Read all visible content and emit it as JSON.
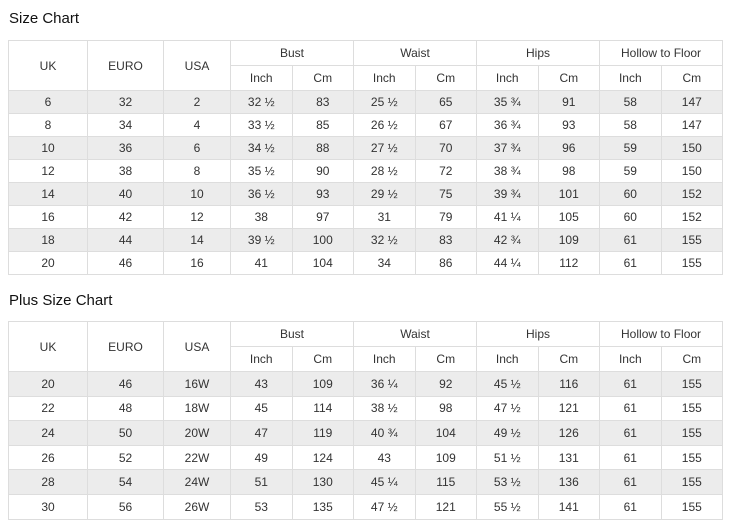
{
  "colors": {
    "border": "#dddddd",
    "zebra_row": "#ececec",
    "text": "#333333",
    "title_text": "#111111"
  },
  "chart_data": [
    {
      "type": "table",
      "title": "Size Chart",
      "column_groups": [
        {
          "label": "UK",
          "span": 1
        },
        {
          "label": "EURO",
          "span": 1
        },
        {
          "label": "USA",
          "span": 1
        },
        {
          "label": "Bust",
          "span": 2
        },
        {
          "label": "Waist",
          "span": 2
        },
        {
          "label": "Hips",
          "span": 2
        },
        {
          "label": "Hollow to Floor",
          "span": 2
        }
      ],
      "sub_headers": [
        "Inch",
        "Cm"
      ],
      "rows": [
        [
          "6",
          "32",
          "2",
          "32 ½",
          "83",
          "25 ½",
          "65",
          "35 ¾",
          "91",
          "58",
          "147"
        ],
        [
          "8",
          "34",
          "4",
          "33 ½",
          "85",
          "26 ½",
          "67",
          "36 ¾",
          "93",
          "58",
          "147"
        ],
        [
          "10",
          "36",
          "6",
          "34 ½",
          "88",
          "27 ½",
          "70",
          "37 ¾",
          "96",
          "59",
          "150"
        ],
        [
          "12",
          "38",
          "8",
          "35 ½",
          "90",
          "28 ½",
          "72",
          "38 ¾",
          "98",
          "59",
          "150"
        ],
        [
          "14",
          "40",
          "10",
          "36 ½",
          "93",
          "29 ½",
          "75",
          "39 ¾",
          "101",
          "60",
          "152"
        ],
        [
          "16",
          "42",
          "12",
          "38",
          "97",
          "31",
          "79",
          "41 ¼",
          "105",
          "60",
          "152"
        ],
        [
          "18",
          "44",
          "14",
          "39 ½",
          "100",
          "32 ½",
          "83",
          "42 ¾",
          "109",
          "61",
          "155"
        ],
        [
          "20",
          "46",
          "16",
          "41",
          "104",
          "34",
          "86",
          "44 ¼",
          "112",
          "61",
          "155"
        ]
      ]
    },
    {
      "type": "table",
      "title": "Plus Size Chart",
      "column_groups": [
        {
          "label": "UK",
          "span": 1
        },
        {
          "label": "EURO",
          "span": 1
        },
        {
          "label": "USA",
          "span": 1
        },
        {
          "label": "Bust",
          "span": 2
        },
        {
          "label": "Waist",
          "span": 2
        },
        {
          "label": "Hips",
          "span": 2
        },
        {
          "label": "Hollow to Floor",
          "span": 2
        }
      ],
      "sub_headers": [
        "Inch",
        "Cm"
      ],
      "rows": [
        [
          "20",
          "46",
          "16W",
          "43",
          "109",
          "36 ¼",
          "92",
          "45 ½",
          "116",
          "61",
          "155"
        ],
        [
          "22",
          "48",
          "18W",
          "45",
          "114",
          "38 ½",
          "98",
          "47 ½",
          "121",
          "61",
          "155"
        ],
        [
          "24",
          "50",
          "20W",
          "47",
          "119",
          "40 ¾",
          "104",
          "49 ½",
          "126",
          "61",
          "155"
        ],
        [
          "26",
          "52",
          "22W",
          "49",
          "124",
          "43",
          "109",
          "51 ½",
          "131",
          "61",
          "155"
        ],
        [
          "28",
          "54",
          "24W",
          "51",
          "130",
          "45 ¼",
          "115",
          "53 ½",
          "136",
          "61",
          "155"
        ],
        [
          "30",
          "56",
          "26W",
          "53",
          "135",
          "47 ½",
          "121",
          "55 ½",
          "141",
          "61",
          "155"
        ]
      ]
    }
  ]
}
